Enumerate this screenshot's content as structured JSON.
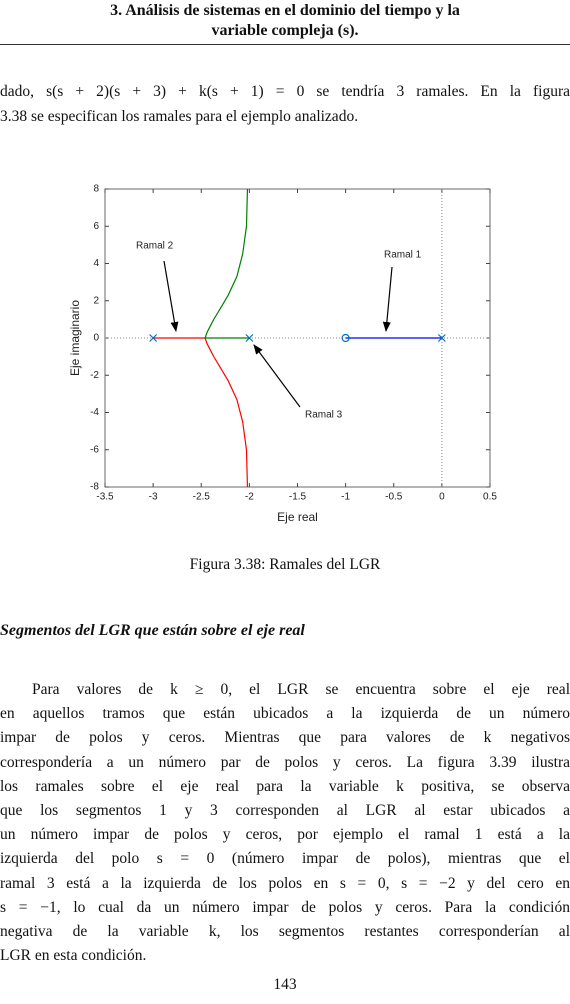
{
  "header": {
    "lines": [
      "3. Análisis de sistemas en el dominio del tiempo y la",
      "variable compleja (s)."
    ]
  },
  "paragraph1": {
    "lines": [
      "dado, s(s + 2)(s + 3) + k(s + 1) = 0 se tendría 3 ramales. En la figura",
      "3.38 se especifican los ramales para el ejemplo analizado."
    ]
  },
  "chart_data": {
    "type": "line",
    "xlabel": "Eje real",
    "ylabel": "Eje imaginario",
    "xlim": [
      -3.5,
      0.5
    ],
    "ylim": [
      -8,
      8
    ],
    "xticks": [
      -3.5,
      -3,
      -2.5,
      -2,
      -1.5,
      -1,
      -0.5,
      0,
      0.5
    ],
    "yticks": [
      -8,
      -6,
      -4,
      -2,
      0,
      2,
      4,
      6,
      8
    ],
    "series": [
      {
        "color": "#ff0000",
        "x": [
          -3,
          -2.7,
          -2.46,
          -2.44,
          -2.41,
          -2.37,
          -2.3,
          -2.22,
          -2.13,
          -2.07,
          -2.03,
          -2.02
        ],
        "values": [
          0,
          0,
          0,
          -0.3,
          -0.6,
          -1,
          -1.6,
          -2.3,
          -3.3,
          -4.5,
          -6,
          -8
        ]
      },
      {
        "color": "#008000",
        "x": [
          -2,
          -2.2,
          -2.46,
          -2.44,
          -2.41,
          -2.37,
          -2.3,
          -2.22,
          -2.13,
          -2.07,
          -2.03,
          -2.02
        ],
        "values": [
          0,
          0,
          0,
          0.3,
          0.6,
          1,
          1.6,
          2.3,
          3.3,
          4.5,
          6,
          8
        ]
      },
      {
        "color": "#0000ff",
        "x": [
          -1,
          0
        ],
        "values": [
          0,
          0
        ]
      }
    ],
    "marker_color": "#0072bd",
    "poles": {
      "x": [
        -3,
        -2,
        0
      ],
      "values": [
        0,
        0,
        0
      ]
    },
    "zeros": {
      "x": [
        -1
      ],
      "values": [
        0
      ]
    },
    "annotations": [
      "Ramal 2",
      "Ramal 1",
      "Ramal 3"
    ]
  },
  "caption": "Figura 3.38: Ramales del LGR",
  "section_heading": "Segmentos del LGR que están sobre el eje real",
  "paragraph2": {
    "lines": [
      "Para valores de k ≥ 0, el LGR se encuentra sobre el eje real",
      "en aquellos tramos que están ubicados a la izquierda de un número",
      "impar de polos y ceros. Mientras que para valores de k negativos",
      "correspondería a un número par de polos y ceros. La figura 3.39 ilustra",
      "los ramales sobre el eje real para la variable k positiva, se observa",
      "que los segmentos 1 y 3 corresponden al LGR al estar ubicados a",
      "un número impar de polos y ceros, por ejemplo el ramal 1 está a la",
      "izquierda del polo s = 0 (número impar de polos), mientras que el",
      "ramal 3 está a la izquierda de los polos en s = 0, s = −2 y del cero en",
      "s = −1, lo cual da un número impar de polos y ceros. Para la condición",
      "negativa de la variable k, los segmentos restantes corresponderían al",
      "LGR en esta condición."
    ]
  },
  "page_number": "143"
}
